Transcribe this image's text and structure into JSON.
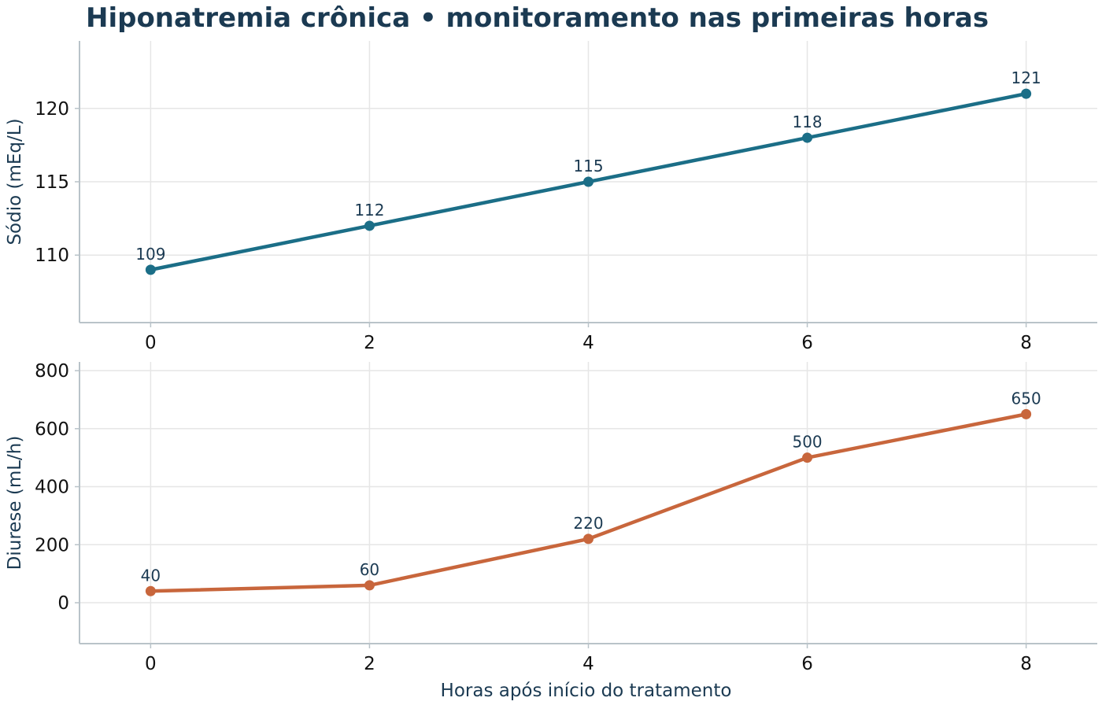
{
  "chart_data": [
    {
      "type": "line",
      "title": "Hiponatremia crônica • monitoramento nas primeiras horas",
      "ylabel": "Sódio (mEq/L)",
      "xlabel": "",
      "x": [
        0,
        2,
        4,
        6,
        8
      ],
      "x_ticks": [
        0,
        2,
        4,
        6,
        8
      ],
      "xlim": [
        -0.65,
        8.65
      ],
      "y_ticks": [
        110,
        115,
        120
      ],
      "ylim": [
        105.4,
        124.6
      ],
      "grid": true,
      "color": "#1b6e87",
      "series": [
        {
          "values": [
            109,
            112,
            115,
            118,
            121
          ]
        }
      ]
    },
    {
      "type": "line",
      "title": "",
      "ylabel": "Diurese (mL/h)",
      "xlabel": "Horas após início do tratamento",
      "x": [
        0,
        2,
        4,
        6,
        8
      ],
      "x_ticks": [
        0,
        2,
        4,
        6,
        8
      ],
      "xlim": [
        -0.65,
        8.65
      ],
      "y_ticks": [
        0,
        200,
        400,
        600,
        800
      ],
      "ylim": [
        -141,
        830
      ],
      "grid": true,
      "color": "#c8663c",
      "series": [
        {
          "values": [
            40,
            60,
            220,
            500,
            650
          ]
        }
      ]
    }
  ]
}
